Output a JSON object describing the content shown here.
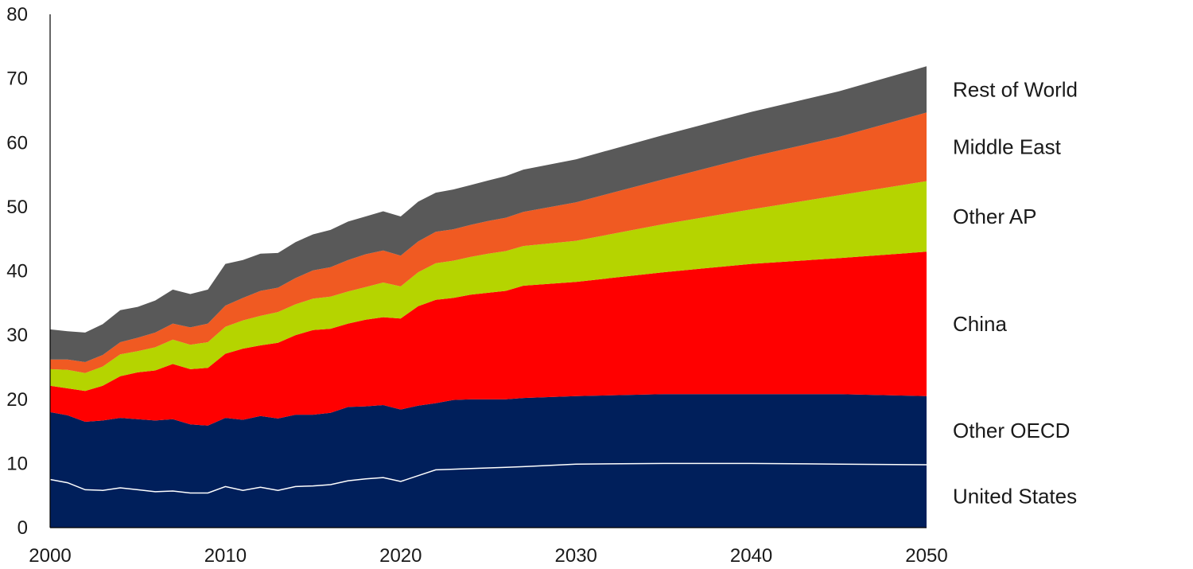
{
  "chart_data": {
    "type": "area",
    "stacked": true,
    "title": "",
    "xlabel": "",
    "ylabel": "",
    "xlim": [
      2000,
      2050
    ],
    "ylim": [
      0,
      80
    ],
    "x_ticks": [
      2000,
      2010,
      2020,
      2030,
      2040,
      2050
    ],
    "y_ticks": [
      0,
      10,
      20,
      30,
      40,
      50,
      60,
      70,
      80
    ],
    "grid": false,
    "legend_position": "right",
    "x": [
      2000,
      2001,
      2002,
      2003,
      2004,
      2005,
      2006,
      2007,
      2008,
      2009,
      2010,
      2011,
      2012,
      2013,
      2014,
      2015,
      2016,
      2017,
      2018,
      2019,
      2020,
      2021,
      2022,
      2023,
      2024,
      2025,
      2026,
      2027,
      2030,
      2035,
      2040,
      2045,
      2050
    ],
    "series": [
      {
        "name": "United States",
        "color": "#001f5b",
        "values": [
          7.5,
          7.0,
          5.9,
          5.8,
          6.2,
          5.9,
          5.6,
          5.7,
          5.4,
          5.4,
          6.4,
          5.8,
          6.3,
          5.8,
          6.4,
          6.5,
          6.7,
          7.3,
          7.6,
          7.8,
          7.2,
          8.1,
          9.0,
          9.1,
          9.2,
          9.3,
          9.4,
          9.5,
          9.9,
          10.0,
          10.0,
          9.9,
          9.8
        ]
      },
      {
        "name": "Other OECD",
        "color": "#001f5b",
        "values": [
          10.5,
          10.5,
          10.6,
          10.9,
          10.9,
          11.0,
          11.1,
          11.2,
          10.7,
          10.5,
          10.7,
          11.0,
          11.1,
          11.2,
          11.2,
          11.1,
          11.2,
          11.5,
          11.3,
          11.3,
          11.2,
          10.9,
          10.4,
          10.8,
          10.8,
          10.7,
          10.6,
          10.7,
          10.6,
          10.8,
          10.8,
          10.9,
          10.7
        ]
      },
      {
        "name": "China",
        "color": "#ff0000",
        "values": [
          4.1,
          4.2,
          4.8,
          5.4,
          6.5,
          7.3,
          7.8,
          8.6,
          8.6,
          9.0,
          10.0,
          11.1,
          11.0,
          11.8,
          12.4,
          13.2,
          13.1,
          13.0,
          13.5,
          13.7,
          14.2,
          15.5,
          16.1,
          15.9,
          16.3,
          16.6,
          16.9,
          17.5,
          17.8,
          19.0,
          20.3,
          21.2,
          22.5
        ]
      },
      {
        "name": "Other AP",
        "color": "#b5d400",
        "values": [
          2.6,
          2.9,
          2.8,
          3.0,
          3.4,
          3.3,
          3.6,
          3.8,
          3.8,
          4.0,
          4.2,
          4.4,
          4.6,
          4.8,
          4.8,
          4.9,
          5.0,
          5.0,
          5.1,
          5.4,
          5.0,
          5.3,
          5.7,
          5.8,
          5.9,
          6.1,
          6.2,
          6.2,
          6.4,
          7.5,
          8.5,
          9.8,
          11.0
        ]
      },
      {
        "name": "Middle East",
        "color": "#f05a22",
        "values": [
          1.5,
          1.6,
          1.7,
          1.8,
          1.9,
          2.1,
          2.3,
          2.5,
          2.7,
          2.9,
          3.3,
          3.5,
          3.9,
          3.8,
          4.1,
          4.4,
          4.6,
          4.9,
          5.1,
          5.0,
          4.8,
          4.8,
          4.9,
          4.9,
          5.0,
          5.1,
          5.2,
          5.3,
          6.0,
          7.0,
          8.2,
          9.1,
          10.7
        ]
      },
      {
        "name": "Rest of World",
        "color": "#595959",
        "values": [
          4.7,
          4.4,
          4.6,
          4.8,
          5.0,
          4.8,
          5.0,
          5.3,
          5.2,
          5.3,
          6.5,
          5.9,
          5.8,
          5.4,
          5.6,
          5.6,
          5.8,
          6.0,
          5.9,
          6.1,
          6.1,
          6.2,
          6.1,
          6.2,
          6.2,
          6.3,
          6.5,
          6.6,
          6.7,
          6.9,
          7.0,
          7.1,
          7.2
        ]
      }
    ]
  }
}
